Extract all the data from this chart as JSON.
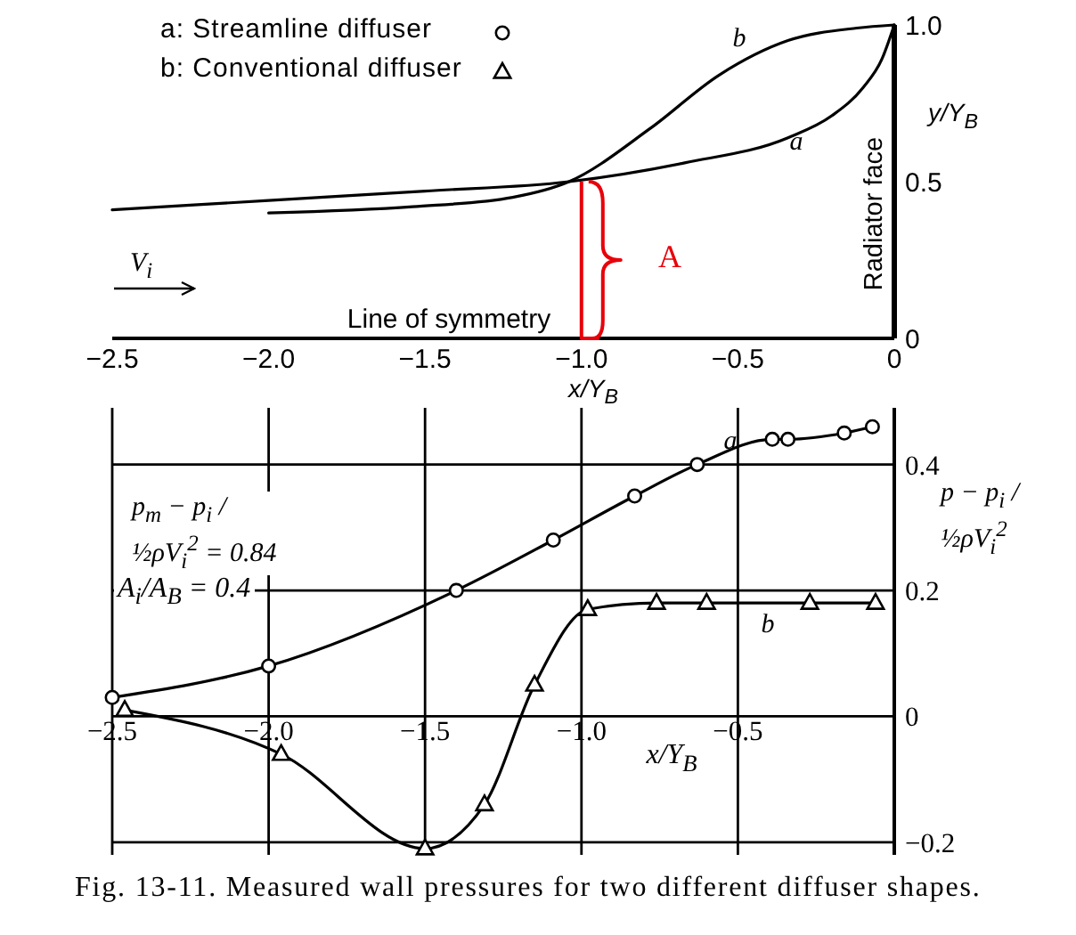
{
  "chart_data": [
    {
      "type": "line",
      "xlabel": "x/Y$_{B}$",
      "ylabel": "y/Y$_{B}$",
      "xlim": [
        -2.5,
        0
      ],
      "ylim": [
        0,
        1
      ],
      "xticks": [
        {
          "value": -2.5,
          "label": "−2.5"
        },
        {
          "value": -2,
          "label": "−2.0"
        },
        {
          "value": -1.5,
          "label": "−1.5"
        },
        {
          "value": -1,
          "label": "−1.0"
        },
        {
          "value": -0.5,
          "label": "−0.5"
        },
        0
      ],
      "yticks": [
        0,
        0.5,
        {
          "value": 1,
          "label": "1.0"
        }
      ],
      "series": [
        {
          "color": "#000000",
          "x": [
            -2.5,
            -2.0,
            -1.5,
            -1.04,
            -0.67,
            -0.34,
            -0.2,
            -0.1,
            -0.04,
            0
          ],
          "values": [
            0.41,
            0.44,
            0.47,
            0.5,
            0.56,
            0.64,
            0.71,
            0.8,
            0.89,
            1.0
          ]
        },
        {
          "color": "#000000",
          "x": [
            -2.0,
            -1.54,
            -1.22,
            -1.04,
            -0.78,
            -0.56,
            -0.34,
            -0.12,
            0
          ],
          "values": [
            0.4,
            0.42,
            0.45,
            0.5,
            0.67,
            0.84,
            0.95,
            0.99,
            1.0
          ]
        }
      ],
      "annotations": [
        "a: Streamline diffuser",
        "b: Conventional diffuser",
        "V$_{i}$",
        "a",
        "b",
        "A",
        "Radiator face",
        "Line of symmetry"
      ]
    },
    {
      "type": "line",
      "xlabel": "x/Y$_{B}$",
      "ylabel": "p − p$_{i}$ / ½ρV$_{i}$$^{2}$",
      "xlim": [
        -2.5,
        0
      ],
      "ylim": [
        -0.22,
        0.49
      ],
      "xticks": [
        {
          "value": -2.5,
          "label": "−2.5"
        },
        {
          "value": -2,
          "label": "−2.0"
        },
        {
          "value": -1.5,
          "label": "−1.5"
        },
        {
          "value": -1,
          "label": "−1.0"
        },
        {
          "value": -0.5,
          "label": "−0.5"
        }
      ],
      "yticks": [
        {
          "value": -0.2,
          "label": "−0.2"
        },
        0,
        0.2,
        0.4
      ],
      "grid": true,
      "series": [
        {
          "color": "#000000",
          "marker": "circle",
          "x": [
            -2.5,
            -2.0,
            -1.4,
            -1.09,
            -0.83,
            -0.63,
            -0.39,
            -0.34,
            -0.16,
            -0.07
          ],
          "values": [
            0.03,
            0.08,
            0.2,
            0.28,
            0.35,
            0.4,
            0.44,
            0.44,
            0.45,
            0.46
          ]
        },
        {
          "color": "#000000",
          "marker": "triangle",
          "x": [
            -2.46,
            -1.96,
            -1.5,
            -1.31,
            -1.15,
            -0.98,
            -0.76,
            -0.6,
            -0.27,
            -0.06
          ],
          "values": [
            0.01,
            -0.06,
            -0.21,
            -0.14,
            0.05,
            0.17,
            0.18,
            0.18,
            0.18,
            0.18
          ]
        }
      ],
      "annotations": [
        "p$_{m}$ − p$_{i}$ / ½ρV$_{i}$$^{2}$ = 0.84",
        "A$_{i}$/A$_{B}$ = 0.4",
        "a",
        "b",
        "Fig. 13-11. Measured wall pressures for two different diffuser shapes."
      ]
    }
  ]
}
